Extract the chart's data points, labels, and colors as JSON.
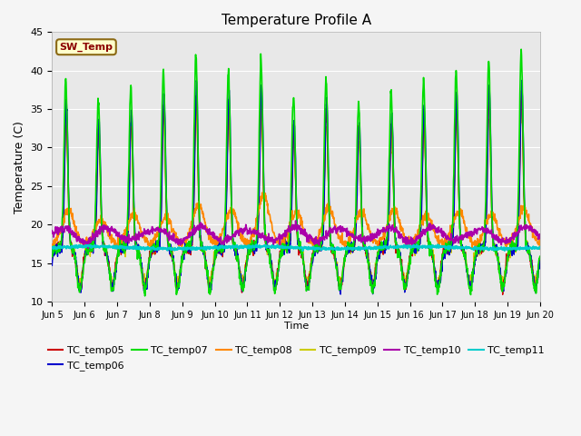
{
  "title": "Temperature Profile A",
  "xlabel": "Time",
  "ylabel": "Temperature (C)",
  "ylim": [
    10,
    45
  ],
  "sw_temp_label": "SW_Temp",
  "bg_color": "#f5f5f5",
  "plot_bg": "#e8e8e8",
  "series": {
    "TC_temp05": {
      "color": "#cc0000",
      "lw": 1.0
    },
    "TC_temp06": {
      "color": "#0000cc",
      "lw": 1.0
    },
    "TC_temp07": {
      "color": "#00dd00",
      "lw": 1.2
    },
    "TC_temp08": {
      "color": "#ff8800",
      "lw": 1.2
    },
    "TC_temp09": {
      "color": "#cccc00",
      "lw": 1.0
    },
    "TC_temp10": {
      "color": "#aa00aa",
      "lw": 1.2
    },
    "TC_temp11": {
      "color": "#00cccc",
      "lw": 1.5
    }
  },
  "xtick_labels": [
    "Jun 5",
    "Jun 6",
    "Jun 7",
    "Jun 8",
    "Jun 9",
    "Jun 10",
    "Jun 11",
    "Jun 12",
    "Jun 13",
    "Jun 14",
    "Jun 15",
    "Jun 16",
    "Jun 17",
    "Jun 18",
    "Jun 19",
    "Jun 20"
  ],
  "ytick_labels": [
    10,
    15,
    20,
    25,
    30,
    35,
    40,
    45
  ],
  "grid_color": "#ffffff",
  "num_points": 1500,
  "figsize": [
    6.4,
    4.8
  ],
  "dpi": 100
}
